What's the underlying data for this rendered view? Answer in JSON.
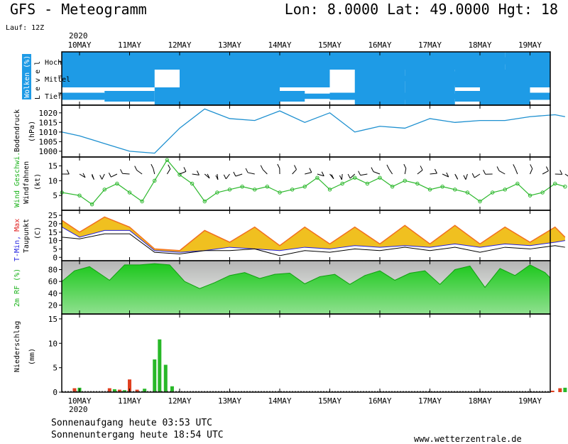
{
  "header": {
    "title": "GFS - Meteogramm",
    "location": "Lon: 8.0000  Lat: 49.0000  Hgt: 18",
    "run": "Lauf: 12Z",
    "year": "2020"
  },
  "footer": {
    "sunrise": "Sonnenaufgang heute 03:53 UTC",
    "sunset": "Sonnenuntergang heute 18:54 UTC",
    "source": "www.wetterzentrale.de",
    "year": "2020"
  },
  "colors": {
    "cloud": "#1e9be6",
    "pressure": "#1e90d0",
    "wind": "#2db82d",
    "temp_fill": "#f0c020",
    "temp_fill_warm": "#f07020",
    "temp_max_label": "#e02020",
    "temp_min_label": "#2020e0",
    "humidity_label": "#19b219",
    "rh_fill": "#22c522",
    "precip_red": "#e04020",
    "precip_green": "#28b828"
  },
  "chart_data": [
    {
      "type": "heatmap",
      "panel": "clouds",
      "ylabel": "Wolken (%)",
      "level_label": "L e v e l",
      "levels": [
        "Hoch",
        "Mittel",
        "Tief"
      ],
      "x_dates": [
        "10MAY",
        "11MAY",
        "12MAY",
        "13MAY",
        "14MAY",
        "15MAY",
        "16MAY",
        "17MAY",
        "18MAY",
        "19MAY"
      ],
      "x_day": [
        0,
        0.5,
        1,
        1.5,
        2,
        2.5,
        3,
        3.5,
        4,
        4.5,
        5,
        5.5,
        6,
        6.5,
        7,
        7.5,
        8,
        8.5,
        9,
        9.5
      ],
      "hoch": [
        100,
        100,
        100,
        100,
        30,
        100,
        100,
        100,
        60,
        100,
        20,
        100,
        100,
        100,
        100,
        100,
        100,
        40,
        100,
        100
      ],
      "mittel": [
        100,
        100,
        100,
        0,
        0,
        100,
        100,
        100,
        100,
        100,
        0,
        0,
        100,
        30,
        100,
        80,
        100,
        100,
        60,
        100
      ],
      "tief": [
        40,
        30,
        60,
        0,
        100,
        100,
        100,
        100,
        60,
        30,
        0,
        40,
        100,
        40,
        100,
        30,
        60,
        100,
        40,
        30
      ]
    },
    {
      "type": "line",
      "panel": "pressure",
      "ylabel": "Bodendruck",
      "unit": "(hPa)",
      "ylim": [
        997,
        1024
      ],
      "yticks": [
        1000,
        1005,
        1010,
        1015,
        1020
      ],
      "x_day": [
        -0.35,
        0,
        0.5,
        1,
        1.5,
        2,
        2.5,
        3,
        3.5,
        4,
        4.5,
        5,
        5.5,
        6,
        6.5,
        7,
        7.5,
        8,
        8.5,
        9,
        9.5,
        9.7
      ],
      "series": [
        {
          "values": [
            1010,
            1008,
            1004,
            1000,
            999,
            1012,
            1022,
            1017,
            1016,
            1021,
            1015,
            1020,
            1010,
            1013,
            1012,
            1017,
            1015,
            1016,
            1016,
            1018,
            1019,
            1018
          ]
        }
      ]
    },
    {
      "type": "line",
      "panel": "wind",
      "ylabel": "Wind Geschwi.",
      "ylabel2": "Windfahnen",
      "unit": "(kt)",
      "ylim": [
        0,
        18
      ],
      "yticks": [
        5,
        10,
        15
      ],
      "x_day": [
        -0.35,
        0,
        0.25,
        0.5,
        0.75,
        1,
        1.25,
        1.5,
        1.75,
        2,
        2.25,
        2.5,
        2.75,
        3,
        3.25,
        3.5,
        3.75,
        4,
        4.25,
        4.5,
        4.75,
        5,
        5.25,
        5.5,
        5.75,
        6,
        6.25,
        6.5,
        6.75,
        7,
        7.25,
        7.5,
        7.75,
        8,
        8.25,
        8.5,
        8.75,
        9,
        9.25,
        9.5,
        9.7
      ],
      "series": [
        {
          "values": [
            6,
            5,
            2,
            7,
            9,
            6,
            3,
            10,
            17,
            12,
            9,
            3,
            6,
            7,
            8,
            7,
            8,
            6,
            7,
            8,
            11,
            7,
            9,
            11,
            9,
            11,
            8,
            10,
            9,
            7,
            8,
            7,
            6,
            3,
            6,
            7,
            9,
            5,
            6,
            9,
            8
          ]
        }
      ]
    },
    {
      "type": "area",
      "panel": "temperature",
      "ylabel": "T-Min, Max",
      "ylabel2": "Taupunkt",
      "unit": "(C)",
      "ylim": [
        -2,
        28
      ],
      "yticks": [
        0,
        5,
        10,
        15,
        20,
        25
      ],
      "x_day": [
        -0.35,
        0,
        0.5,
        1,
        1.5,
        2,
        2.5,
        3,
        3.5,
        4,
        4.5,
        5,
        5.5,
        6,
        6.5,
        7,
        7.5,
        8,
        8.5,
        9,
        9.5,
        9.7
      ],
      "series": [
        {
          "name": "Max",
          "values": [
            22,
            15,
            24,
            18,
            5,
            4,
            16,
            9,
            18,
            7,
            18,
            8,
            18,
            8,
            19,
            8,
            19,
            8,
            18,
            9,
            18,
            12
          ]
        },
        {
          "name": "Min",
          "values": [
            18,
            12,
            16,
            16,
            4,
            3,
            4,
            6,
            5,
            4,
            6,
            5,
            7,
            6,
            7,
            6,
            8,
            6,
            8,
            7,
            9,
            10
          ]
        },
        {
          "name": "Taupunkt",
          "values": [
            12,
            11,
            14,
            14,
            3,
            2,
            4,
            4,
            5,
            1,
            4,
            3,
            5,
            4,
            6,
            4,
            6,
            3,
            6,
            5,
            7,
            6
          ]
        }
      ]
    },
    {
      "type": "area",
      "panel": "humidity",
      "ylabel": "2m RF (%)",
      "ylim": [
        5,
        95
      ],
      "yticks": [
        20,
        40,
        60,
        80
      ],
      "x_day": [
        -0.35,
        -0.1,
        0.2,
        0.6,
        0.9,
        1.2,
        1.5,
        1.8,
        2.1,
        2.4,
        2.7,
        3.0,
        3.3,
        3.6,
        3.9,
        4.2,
        4.5,
        4.8,
        5.1,
        5.4,
        5.7,
        6.0,
        6.3,
        6.6,
        6.9,
        7.2,
        7.5,
        7.8,
        8.1,
        8.4,
        8.7,
        9.0,
        9.3,
        9.6,
        9.7
      ],
      "series": [
        {
          "values": [
            60,
            78,
            85,
            62,
            88,
            88,
            90,
            88,
            60,
            48,
            58,
            70,
            75,
            65,
            72,
            74,
            56,
            68,
            72,
            55,
            70,
            78,
            62,
            74,
            78,
            55,
            80,
            86,
            50,
            82,
            70,
            88,
            75,
            66,
            70
          ]
        }
      ]
    },
    {
      "type": "bar",
      "panel": "precipitation",
      "ylabel": "Niederschlag",
      "unit": "(mm)",
      "ylim": [
        0,
        16
      ],
      "yticks": [
        0,
        5,
        10,
        15
      ],
      "series": [
        {
          "color": "red",
          "x_day": [
            -0.1,
            0.6,
            0.8,
            1.0,
            1.15,
            9.45,
            9.6
          ],
          "values": [
            0.8,
            0.8,
            0.5,
            2.6,
            0.5,
            0.3,
            0.8
          ]
        },
        {
          "color": "green",
          "x_day": [
            0.0,
            0.7,
            0.9,
            1.3,
            1.5,
            1.6,
            1.72,
            1.85,
            9.7
          ],
          "values": [
            0.9,
            0.6,
            0.4,
            0.7,
            6.7,
            10.8,
            5.6,
            1.2,
            0.9
          ]
        }
      ]
    }
  ]
}
